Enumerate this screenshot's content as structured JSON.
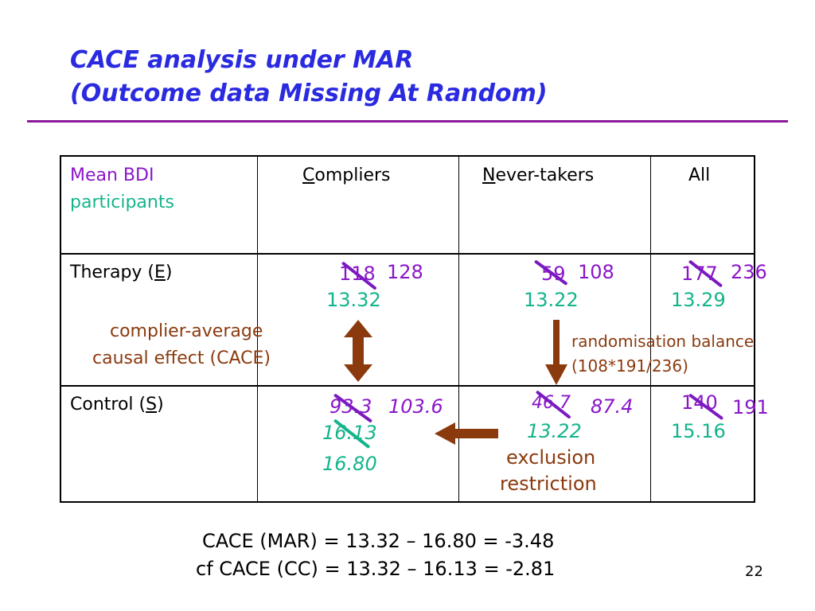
{
  "title": {
    "line1": "CACE analysis under MAR",
    "line2": "(Outcome data Missing At Random)"
  },
  "table": {
    "header": {
      "col0_line1": "Mean BDI",
      "col0_line2": "participants",
      "compliers_initial": "C",
      "compliers_rest": "ompliers",
      "never_initial": "N",
      "never_rest": "ever-takers",
      "all": "All"
    },
    "therapy": {
      "label_prefix": "Therapy (",
      "label_letter": "E",
      "label_suffix": ")",
      "compliers_n_old": "118",
      "compliers_n_new": "128",
      "compliers_mean": "13.32",
      "never_n_old": "59",
      "never_n_new": "108",
      "never_mean": "13.22",
      "all_n_old": "177",
      "all_n_new": "236",
      "all_mean": "13.29"
    },
    "control": {
      "label_prefix": "Control (",
      "label_letter": "S",
      "label_suffix": ")",
      "compliers_n_old": "93.3",
      "compliers_n_new": "103.6",
      "compliers_mean_old": "16.13",
      "compliers_mean_new": "16.80",
      "never_n_old": "46.7",
      "never_n_new": "87.4",
      "never_mean": "13.22",
      "all_n_old": "140",
      "all_n_new": "191",
      "all_mean": "15.16"
    }
  },
  "annotations": {
    "cace_line1": "complier-average",
    "cace_line2": "causal effect (CACE)",
    "rand_line1": "randomisation balance",
    "rand_line2": "(108*191/236)",
    "excl_line1": "exclusion",
    "excl_line2": "restriction"
  },
  "formulas": {
    "line1": "CACE (MAR) = 13.32 – 16.80 = -3.48",
    "line2": "cf CACE (CC) = 13.32 – 16.13 = -2.81"
  },
  "page_number": "22",
  "colors": {
    "title": "#2a2ae0",
    "rule": "#8a1a9a",
    "purple": "#8a16c8",
    "teal": "#14b48c",
    "brown": "#8b3a0e"
  }
}
